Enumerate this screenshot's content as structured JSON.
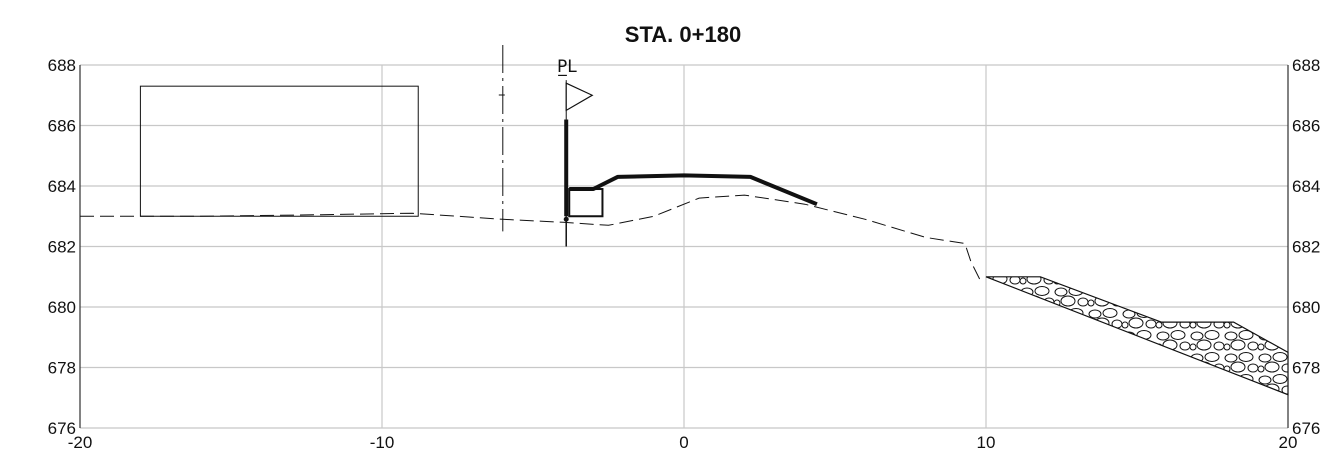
{
  "title": "STA. 0+180",
  "centerline_label": "P̲L",
  "chart_data": {
    "type": "cross-section",
    "xlim": [
      -20,
      20
    ],
    "ylim": [
      676,
      688
    ],
    "x_ticks": [
      "-20",
      "-10",
      "0",
      "10",
      "20"
    ],
    "y_ticks_left": [
      "688",
      "686",
      "684",
      "682",
      "680",
      "678",
      "676"
    ],
    "y_ticks_right": [
      "688",
      "686",
      "684",
      "682",
      "680",
      "678",
      "676"
    ],
    "grid": true,
    "existing_ground": [
      [
        -20,
        683.0
      ],
      [
        -16,
        683.0
      ],
      [
        -12,
        683.05
      ],
      [
        -9,
        683.1
      ],
      [
        -6,
        682.9
      ],
      [
        -4,
        682.8
      ],
      [
        -2.5,
        682.7
      ],
      [
        -1,
        683.0
      ],
      [
        0.5,
        683.6
      ],
      [
        2,
        683.7
      ],
      [
        4,
        683.4
      ],
      [
        6,
        682.9
      ],
      [
        8,
        682.3
      ],
      [
        9.3,
        682.1
      ],
      [
        9.5,
        681.5
      ],
      [
        9.8,
        680.9
      ]
    ],
    "proposed_road": [
      [
        -3.8,
        683.9
      ],
      [
        -3,
        683.9
      ],
      [
        -2.2,
        684.3
      ],
      [
        0,
        684.35
      ],
      [
        2.2,
        684.3
      ],
      [
        4.4,
        683.4
      ]
    ],
    "centerline_x": -3.9,
    "row_line_x": -6,
    "building": {
      "x": [
        -18,
        -8.8
      ],
      "y": [
        683.0,
        687.3
      ]
    },
    "riprap": [
      [
        10,
        681.0
      ],
      [
        11.8,
        681.0
      ],
      [
        15.8,
        679.5
      ],
      [
        18.2,
        679.5
      ],
      [
        20,
        678.5
      ],
      [
        20,
        677.1
      ]
    ]
  }
}
